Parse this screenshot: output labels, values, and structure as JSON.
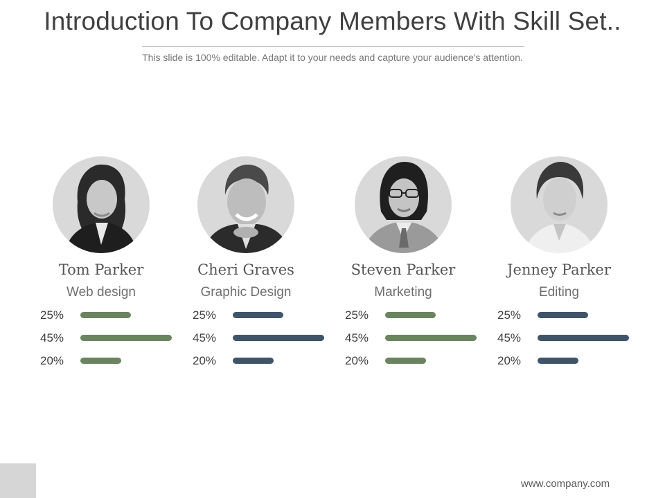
{
  "slide": {
    "title": "Introduction To Company Members With Skill Set..",
    "subtitle": "This slide is 100% editable. Adapt it to your needs and capture your audience's attention.",
    "website": "www.company.com"
  },
  "colors": {
    "green": "#6b8460",
    "navy": "#3f5468",
    "photo_background": "#d9d9d9"
  },
  "members": [
    {
      "name": "Tom Parker",
      "role": "Web design",
      "bar_color": "green",
      "skills": [
        {
          "label": "25%",
          "value": 25
        },
        {
          "label": "45%",
          "value": 45
        },
        {
          "label": "20%",
          "value": 20
        }
      ]
    },
    {
      "name": "Cheri Graves",
      "role": "Graphic Design",
      "bar_color": "navy",
      "skills": [
        {
          "label": "25%",
          "value": 25
        },
        {
          "label": "45%",
          "value": 45
        },
        {
          "label": "20%",
          "value": 20
        }
      ]
    },
    {
      "name": "Steven Parker",
      "role": "Marketing",
      "bar_color": "green",
      "skills": [
        {
          "label": "25%",
          "value": 25
        },
        {
          "label": "45%",
          "value": 45
        },
        {
          "label": "20%",
          "value": 20
        }
      ]
    },
    {
      "name": "Jenney Parker",
      "role": "Editing",
      "bar_color": "navy",
      "skills": [
        {
          "label": "25%",
          "value": 25
        },
        {
          "label": "45%",
          "value": 45
        },
        {
          "label": "20%",
          "value": 20
        }
      ]
    }
  ]
}
